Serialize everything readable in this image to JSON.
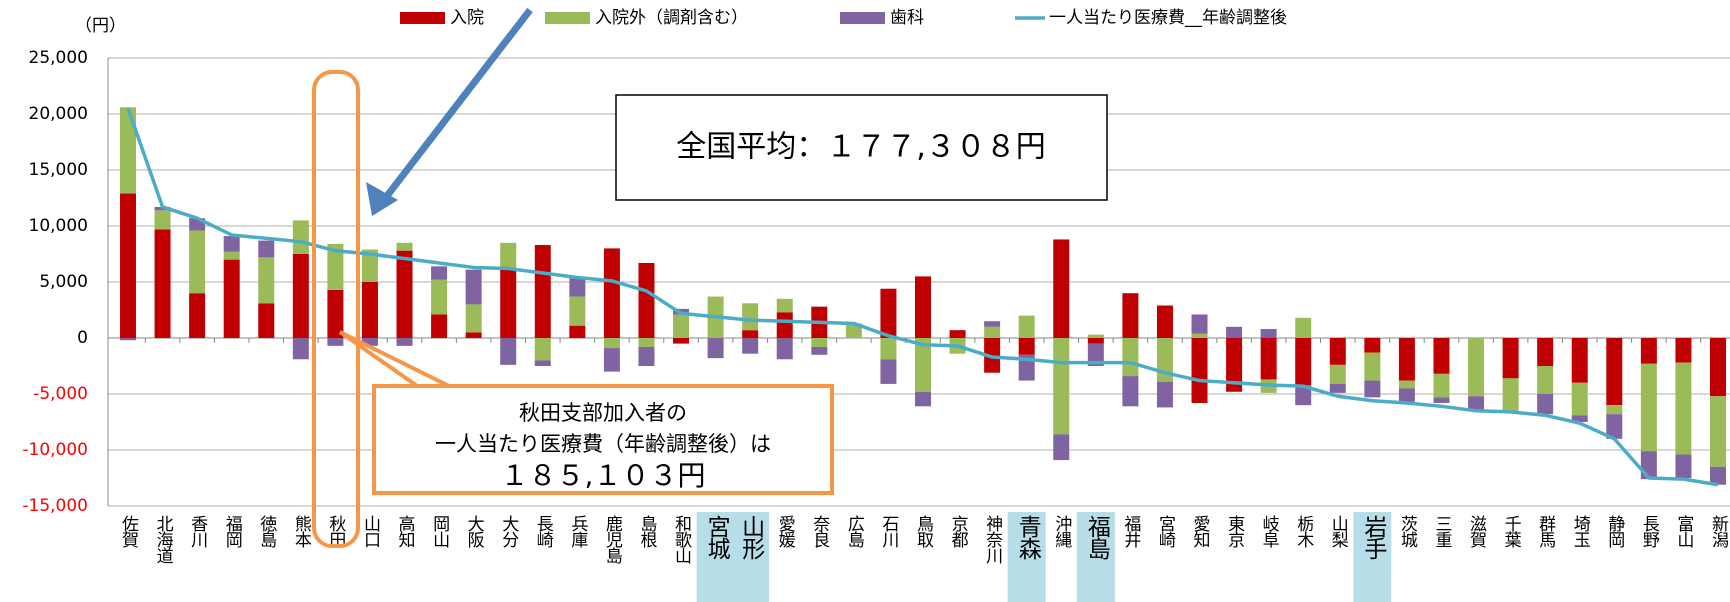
{
  "chart_data": {
    "type": "bar",
    "unit_label": "（円）",
    "annotations": [
      "全国平均：１７７,３０８円",
      "秋田支部加入者の",
      "一人当たり医療費（年齢調整後）は",
      "１８５,１０３円"
    ],
    "categories": [
      "佐賀",
      "北海道",
      "香川",
      "福岡",
      "徳島",
      "熊本",
      "秋田",
      "山口",
      "高知",
      "岡山",
      "大阪",
      "大分",
      "長崎",
      "兵庫",
      "鹿児島",
      "島根",
      "和歌山",
      "宮城",
      "山形",
      "愛媛",
      "奈良",
      "広島",
      "石川",
      "鳥取",
      "京都",
      "神奈川",
      "青森",
      "沖縄",
      "福島",
      "福井",
      "宮崎",
      "愛知",
      "東京",
      "岐阜",
      "栃木",
      "山梨",
      "岩手",
      "茨城",
      "三重",
      "滋賀",
      "千葉",
      "群馬",
      "埼玉",
      "静岡",
      "長野",
      "富山",
      "新潟"
    ],
    "highlight_categories": [
      "宮城",
      "山形",
      "青森",
      "福島",
      "岩手"
    ],
    "highlight_color": "#b7dde8",
    "series": [
      {
        "name": "入院",
        "type": "bar",
        "color": "#c00000",
        "values": [
          12900,
          9700,
          4000,
          7000,
          3100,
          7500,
          4300,
          5000,
          7800,
          2100,
          500,
          6100,
          8300,
          1100,
          8000,
          6700,
          -500,
          0,
          700,
          2300,
          2800,
          0,
          4400,
          5500,
          700,
          -3100,
          -1500,
          8800,
          -500,
          4000,
          2900,
          -5800,
          -4800,
          -3700,
          -4200,
          -2400,
          -1300,
          -3800,
          -3200,
          0,
          -3600,
          -2500,
          -4000,
          -6000,
          -2300,
          -2200,
          -5200
        ]
      },
      {
        "name": "入院外（調剤含む）",
        "type": "bar",
        "color": "#9bbb59",
        "values": [
          7700,
          1700,
          5600,
          700,
          4100,
          3000,
          4100,
          2900,
          700,
          3100,
          2500,
          2400,
          -2000,
          2600,
          -900,
          -800,
          2100,
          3700,
          2400,
          1200,
          -800,
          1300,
          -1900,
          -4800,
          -1400,
          1000,
          2000,
          -8600,
          300,
          -3400,
          -3900,
          400,
          0,
          -1200,
          1800,
          -1700,
          -2500,
          -700,
          -2100,
          -5200,
          -2900,
          -2500,
          -2900,
          -800,
          -7800,
          -8200,
          -6300
        ]
      },
      {
        "name": "歯科",
        "type": "bar",
        "color": "#8064a2",
        "values": [
          -200,
          300,
          1100,
          1400,
          1500,
          -1900,
          -700,
          -700,
          -700,
          1200,
          3100,
          -2400,
          -500,
          1700,
          -2100,
          -1700,
          500,
          -1800,
          -1400,
          -1900,
          -700,
          0,
          -2200,
          -1300,
          0,
          500,
          -2300,
          -2300,
          -2000,
          -2700,
          -2300,
          1700,
          1000,
          800,
          -1800,
          -800,
          -1500,
          -1200,
          -500,
          -1200,
          0,
          -1800,
          -600,
          -2200,
          -2500,
          -2100,
          -1600
        ]
      },
      {
        "name": "一人当たり医療費__年齢調整後",
        "type": "line",
        "color": "#4bacc6",
        "values": [
          20500,
          11700,
          10700,
          9200,
          8900,
          8600,
          7800,
          7500,
          7100,
          6700,
          6300,
          6200,
          5800,
          5400,
          5100,
          4200,
          2200,
          1900,
          1600,
          1500,
          1400,
          1300,
          200,
          -600,
          -700,
          -1700,
          -1900,
          -2200,
          -2200,
          -2200,
          -3100,
          -3800,
          -4000,
          -4200,
          -4300,
          -5200,
          -5600,
          -5800,
          -6100,
          -6500,
          -6600,
          -6900,
          -7600,
          -9000,
          -12500,
          -12600,
          -13100
        ]
      }
    ],
    "ylim": [
      -15000,
      25000
    ],
    "yticks": [
      {
        "value": -15000,
        "label": "-15,000"
      },
      {
        "value": -10000,
        "label": "-10,000"
      },
      {
        "value": -5000,
        "label": "-5,000"
      },
      0,
      {
        "value": 5000,
        "label": "5,000"
      },
      {
        "value": 10000,
        "label": "10,000"
      },
      {
        "value": 15000,
        "label": "15,000"
      },
      {
        "value": 20000,
        "label": "20,000"
      },
      {
        "value": 25000,
        "label": "25,000"
      }
    ],
    "negative_tick_color": "#ff0000",
    "grid": true,
    "legend": "top"
  }
}
